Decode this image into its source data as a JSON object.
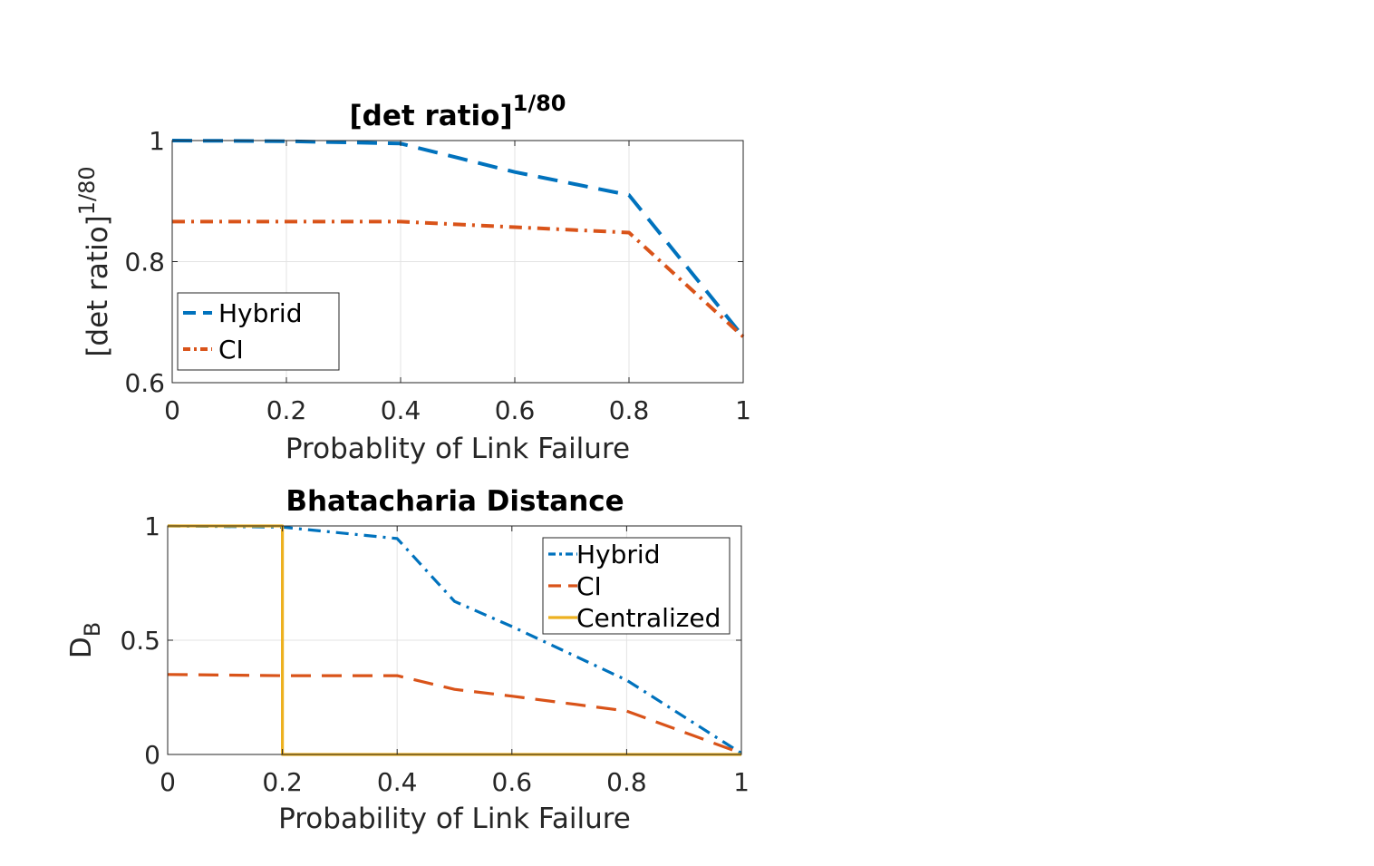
{
  "chart_data": [
    {
      "type": "line",
      "title_main": "[det ratio]",
      "title_sup": "1/80",
      "xlabel": "Probablity of Link Failure",
      "ylabel_main": "[det ratio]",
      "ylabel_sup": "1/80",
      "xlim": [
        0,
        1
      ],
      "ylim": [
        0.6,
        1
      ],
      "xticks": [
        0,
        0.2,
        0.4,
        0.6,
        0.8,
        1
      ],
      "xtick_labels": [
        "0",
        "0.2",
        "0.4",
        "0.6",
        "0.8",
        "1"
      ],
      "yticks": [
        0.6,
        0.8,
        1
      ],
      "ytick_labels": [
        "0.6",
        "0.8",
        "1"
      ],
      "grid": true,
      "legend_position": "bottom-left",
      "series": [
        {
          "name": "Hybrid",
          "color": "#0072BD",
          "dash": "dashed",
          "x": [
            0,
            0.2,
            0.4,
            0.6,
            0.8,
            1
          ],
          "y": [
            1.0,
            0.999,
            0.995,
            0.948,
            0.91,
            0.676
          ]
        },
        {
          "name": "CI",
          "color": "#D95319",
          "dash": "dashdot",
          "x": [
            0,
            0.2,
            0.4,
            0.6,
            0.8,
            1
          ],
          "y": [
            0.866,
            0.866,
            0.866,
            0.857,
            0.848,
            0.676
          ]
        }
      ]
    },
    {
      "type": "line",
      "title_main": "Bhatacharia Distance",
      "title_sup": "",
      "xlabel": "Probability of Link Failure",
      "ylabel_main": "D",
      "ylabel_sub": "B",
      "xlim": [
        0,
        1
      ],
      "ylim": [
        0,
        1
      ],
      "xticks": [
        0,
        0.2,
        0.4,
        0.6,
        0.8,
        1
      ],
      "xtick_labels": [
        "0",
        "0.2",
        "0.4",
        "0.6",
        "0.8",
        "1"
      ],
      "yticks": [
        0,
        0.5,
        1
      ],
      "ytick_labels": [
        "0",
        "0.5",
        "1"
      ],
      "grid": true,
      "legend_position": "top-right",
      "series": [
        {
          "name": "Hybrid",
          "color": "#0072BD",
          "dash": "dashdot",
          "x": [
            0,
            0.2,
            0.4,
            0.5,
            0.6,
            0.8,
            1
          ],
          "y": [
            1.0,
            0.995,
            0.945,
            0.67,
            0.56,
            0.325,
            0.005
          ]
        },
        {
          "name": "CI",
          "color": "#D95319",
          "dash": "dashed",
          "x": [
            0,
            0.2,
            0.4,
            0.5,
            0.6,
            0.8,
            1
          ],
          "y": [
            0.35,
            0.345,
            0.345,
            0.285,
            0.255,
            0.19,
            0.005
          ]
        },
        {
          "name": "Centralized",
          "color": "#EDB120",
          "dash": "solid",
          "x": [
            0,
            0.2,
            0.2,
            1
          ],
          "y": [
            1.0,
            1.0,
            0,
            0
          ]
        }
      ]
    }
  ]
}
